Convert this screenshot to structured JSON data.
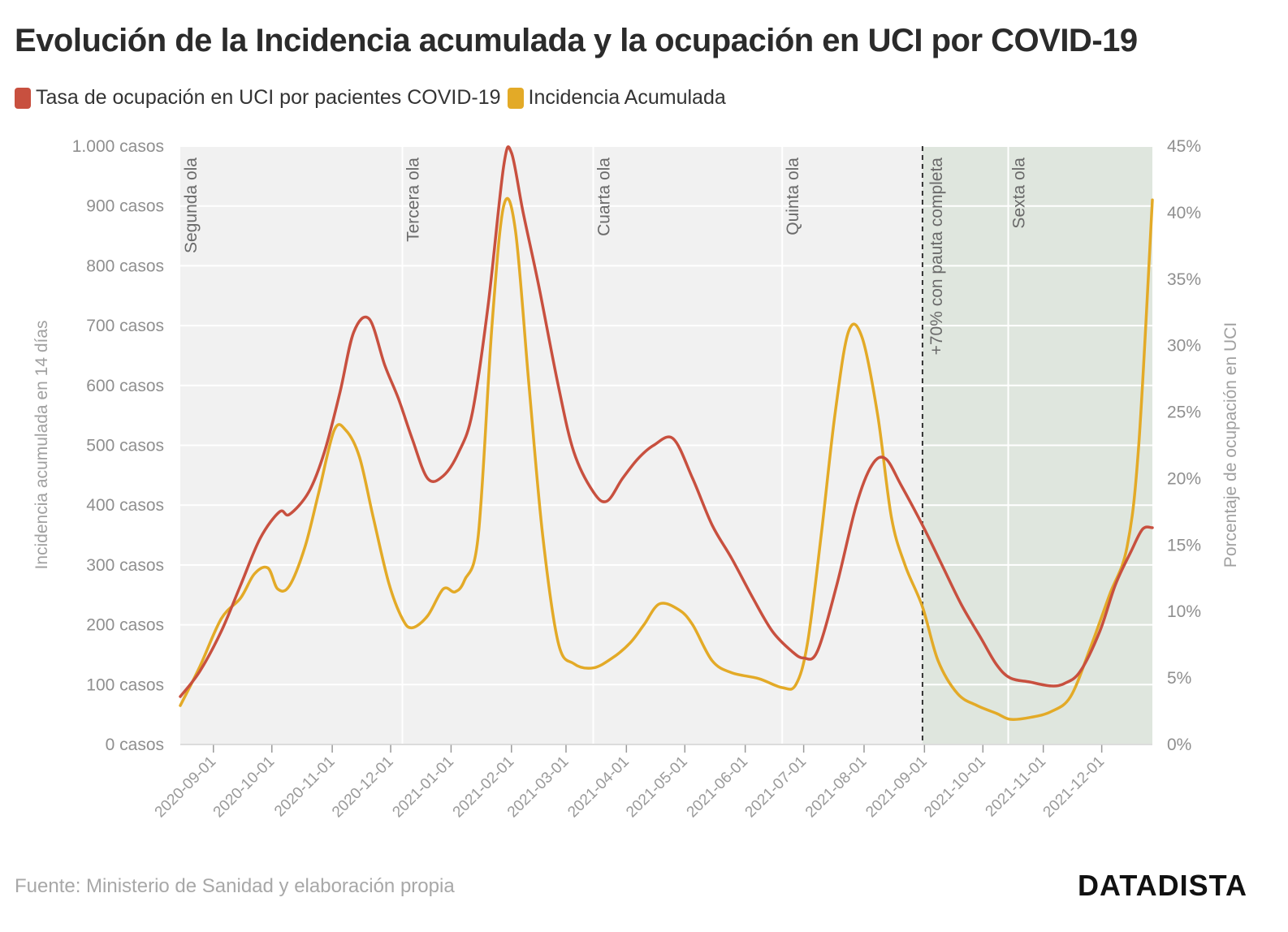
{
  "title": "Evolución de la Incidencia acumulada y la ocupación en UCI por COVID-19",
  "source": "Fuente: Ministerio de Sanidad y elaboración propia",
  "brand": "DATADISTA",
  "colors": {
    "uci": "#c8503f",
    "incidence": "#e3aa27",
    "plot_bg": "#f1f1f1",
    "shaded_bg": "#dfe6de",
    "grid": "#ffffff"
  },
  "chart_data": {
    "type": "line",
    "title": "Evolución de la Incidencia acumulada y la ocupación en UCI por COVID-19",
    "ylabel": "Incidencia acumulada en 14 días",
    "y2label": "Porcentaje de ocupación en UCI",
    "ylim": [
      0,
      1000
    ],
    "y2lim": [
      0,
      45
    ],
    "x_range": [
      "2020-08-15",
      "2021-12-27"
    ],
    "legend_position": "top-left",
    "yticks": [
      {
        "value": 0,
        "label": "0 casos"
      },
      {
        "value": 100,
        "label": "100 casos"
      },
      {
        "value": 200,
        "label": "200 casos"
      },
      {
        "value": 300,
        "label": "300 casos"
      },
      {
        "value": 400,
        "label": "400 casos"
      },
      {
        "value": 500,
        "label": "500 casos"
      },
      {
        "value": 600,
        "label": "600 casos"
      },
      {
        "value": 700,
        "label": "700 casos"
      },
      {
        "value": 800,
        "label": "800 casos"
      },
      {
        "value": 900,
        "label": "900 casos"
      },
      {
        "value": 1000,
        "label": "1.000 casos"
      }
    ],
    "y2ticks": [
      {
        "value": 0,
        "label": "0%"
      },
      {
        "value": 5,
        "label": "5%"
      },
      {
        "value": 10,
        "label": "10%"
      },
      {
        "value": 15,
        "label": "15%"
      },
      {
        "value": 20,
        "label": "20%"
      },
      {
        "value": 25,
        "label": "25%"
      },
      {
        "value": 30,
        "label": "30%"
      },
      {
        "value": 35,
        "label": "35%"
      },
      {
        "value": 40,
        "label": "40%"
      },
      {
        "value": 45,
        "label": "45%"
      }
    ],
    "xticks": [
      "2020-09-01",
      "2020-10-01",
      "2020-11-01",
      "2020-12-01",
      "2021-01-01",
      "2021-02-01",
      "2021-03-01",
      "2021-04-01",
      "2021-05-01",
      "2021-06-01",
      "2021-07-01",
      "2021-08-01",
      "2021-09-01",
      "2021-10-01",
      "2021-11-01",
      "2021-12-01"
    ],
    "waves": [
      {
        "date": "2020-08-15",
        "label": "Segunda ola"
      },
      {
        "date": "2020-12-07",
        "label": "Tercera ola"
      },
      {
        "date": "2021-03-15",
        "label": "Cuarta ola"
      },
      {
        "date": "2021-06-20",
        "label": "Quinta ola"
      },
      {
        "date": "2021-10-14",
        "label": "Sexta ola"
      }
    ],
    "milestone": {
      "date": "2021-08-31",
      "label": "+70% con pauta completa"
    },
    "series": [
      {
        "name": "Tasa de ocupación en UCI por pacientes COVID-19",
        "axis": "right",
        "unit": "%",
        "points": [
          [
            "2020-08-15",
            3.6
          ],
          [
            "2020-08-25",
            5.5
          ],
          [
            "2020-09-05",
            8.5
          ],
          [
            "2020-09-15",
            12
          ],
          [
            "2020-09-25",
            15.5
          ],
          [
            "2020-10-05",
            17.5
          ],
          [
            "2020-10-10",
            17.3
          ],
          [
            "2020-10-20",
            19
          ],
          [
            "2020-10-28",
            22
          ],
          [
            "2020-11-05",
            26.5
          ],
          [
            "2020-11-12",
            31
          ],
          [
            "2020-11-20",
            32
          ],
          [
            "2020-11-28",
            28.5
          ],
          [
            "2020-12-05",
            26
          ],
          [
            "2020-12-12",
            23
          ],
          [
            "2020-12-20",
            20
          ],
          [
            "2020-12-28",
            20.2
          ],
          [
            "2021-01-05",
            22
          ],
          [
            "2021-01-12",
            25
          ],
          [
            "2021-01-20",
            33
          ],
          [
            "2021-01-28",
            43.5
          ],
          [
            "2021-02-01",
            44.5
          ],
          [
            "2021-02-07",
            40
          ],
          [
            "2021-02-15",
            34.5
          ],
          [
            "2021-02-25",
            27
          ],
          [
            "2021-03-05",
            22
          ],
          [
            "2021-03-15",
            19
          ],
          [
            "2021-03-22",
            18.3
          ],
          [
            "2021-03-30",
            20
          ],
          [
            "2021-04-07",
            21.5
          ],
          [
            "2021-04-15",
            22.5
          ],
          [
            "2021-04-25",
            23
          ],
          [
            "2021-05-05",
            20
          ],
          [
            "2021-05-15",
            16.5
          ],
          [
            "2021-05-25",
            14
          ],
          [
            "2021-06-05",
            11
          ],
          [
            "2021-06-15",
            8.5
          ],
          [
            "2021-06-25",
            7
          ],
          [
            "2021-07-01",
            6.5
          ],
          [
            "2021-07-08",
            7
          ],
          [
            "2021-07-18",
            12
          ],
          [
            "2021-07-28",
            18
          ],
          [
            "2021-08-05",
            21
          ],
          [
            "2021-08-12",
            21.5
          ],
          [
            "2021-08-20",
            19.5
          ],
          [
            "2021-08-31",
            16.5
          ],
          [
            "2021-09-10",
            13.5
          ],
          [
            "2021-09-20",
            10.5
          ],
          [
            "2021-09-30",
            8
          ],
          [
            "2021-10-08",
            6
          ],
          [
            "2021-10-15",
            5
          ],
          [
            "2021-10-25",
            4.7
          ],
          [
            "2021-11-05",
            4.4
          ],
          [
            "2021-11-12",
            4.6
          ],
          [
            "2021-11-20",
            5.5
          ],
          [
            "2021-11-30",
            8.5
          ],
          [
            "2021-12-08",
            12
          ],
          [
            "2021-12-16",
            14.5
          ],
          [
            "2021-12-22",
            16.2
          ],
          [
            "2021-12-27",
            16.3
          ]
        ]
      },
      {
        "name": "Incidencia Acumulada",
        "axis": "left",
        "unit": "casos",
        "points": [
          [
            "2020-08-15",
            65
          ],
          [
            "2020-08-25",
            130
          ],
          [
            "2020-09-05",
            210
          ],
          [
            "2020-09-15",
            245
          ],
          [
            "2020-09-22",
            285
          ],
          [
            "2020-09-29",
            295
          ],
          [
            "2020-10-04",
            260
          ],
          [
            "2020-10-10",
            265
          ],
          [
            "2020-10-18",
            330
          ],
          [
            "2020-10-25",
            420
          ],
          [
            "2020-11-02",
            525
          ],
          [
            "2020-11-08",
            525
          ],
          [
            "2020-11-15",
            480
          ],
          [
            "2020-11-22",
            380
          ],
          [
            "2020-11-30",
            270
          ],
          [
            "2020-12-07",
            210
          ],
          [
            "2020-12-12",
            195
          ],
          [
            "2020-12-20",
            215
          ],
          [
            "2020-12-28",
            260
          ],
          [
            "2021-01-03",
            255
          ],
          [
            "2021-01-08",
            275
          ],
          [
            "2021-01-15",
            350
          ],
          [
            "2021-01-22",
            700
          ],
          [
            "2021-01-28",
            900
          ],
          [
            "2021-02-03",
            860
          ],
          [
            "2021-02-10",
            600
          ],
          [
            "2021-02-17",
            350
          ],
          [
            "2021-02-25",
            170
          ],
          [
            "2021-03-05",
            135
          ],
          [
            "2021-03-15",
            128
          ],
          [
            "2021-03-25",
            145
          ],
          [
            "2021-04-03",
            170
          ],
          [
            "2021-04-10",
            200
          ],
          [
            "2021-04-18",
            235
          ],
          [
            "2021-04-28",
            225
          ],
          [
            "2021-05-05",
            200
          ],
          [
            "2021-05-15",
            140
          ],
          [
            "2021-05-25",
            120
          ],
          [
            "2021-06-08",
            110
          ],
          [
            "2021-06-20",
            95
          ],
          [
            "2021-06-27",
            100
          ],
          [
            "2021-07-03",
            170
          ],
          [
            "2021-07-10",
            350
          ],
          [
            "2021-07-17",
            550
          ],
          [
            "2021-07-24",
            690
          ],
          [
            "2021-07-31",
            680
          ],
          [
            "2021-08-08",
            550
          ],
          [
            "2021-08-15",
            380
          ],
          [
            "2021-08-22",
            300
          ],
          [
            "2021-08-31",
            230
          ],
          [
            "2021-09-08",
            140
          ],
          [
            "2021-09-18",
            85
          ],
          [
            "2021-09-28",
            65
          ],
          [
            "2021-10-08",
            52
          ],
          [
            "2021-10-15",
            42
          ],
          [
            "2021-10-25",
            45
          ],
          [
            "2021-11-05",
            55
          ],
          [
            "2021-11-15",
            80
          ],
          [
            "2021-11-25",
            160
          ],
          [
            "2021-12-05",
            250
          ],
          [
            "2021-12-14",
            330
          ],
          [
            "2021-12-20",
            500
          ],
          [
            "2021-12-27",
            910
          ]
        ]
      }
    ]
  }
}
